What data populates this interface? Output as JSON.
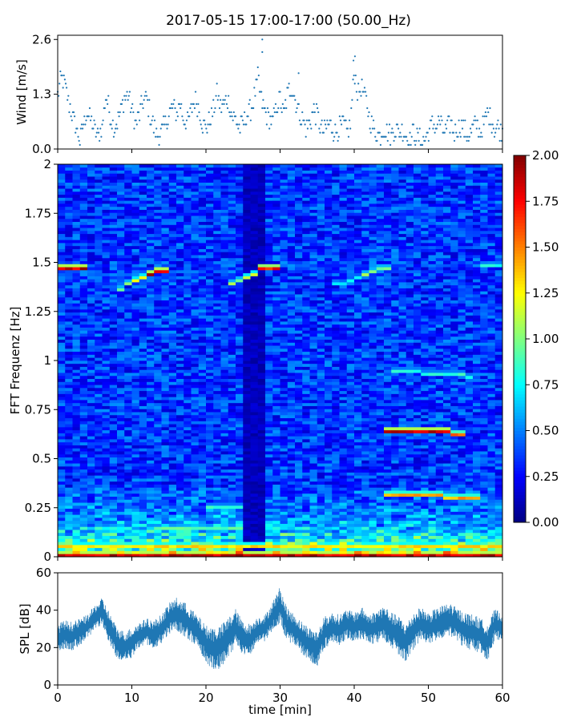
{
  "title": "2017-05-15 17:00-17:00 (50.00_Hz)",
  "chart_data": [
    {
      "type": "scatter",
      "panel": "wind",
      "ylabel": "Wind [m/s]",
      "xlim": [
        0,
        60
      ],
      "ylim": [
        0,
        2.7
      ],
      "yticks": [
        "0.0",
        "1.3",
        "2.6"
      ],
      "color": "#1f77b4",
      "x": [
        0,
        0.5,
        1,
        1.5,
        2,
        2.5,
        3,
        3.5,
        4,
        4.5,
        5,
        5.5,
        6,
        6.5,
        7,
        7.5,
        8,
        8.5,
        9,
        9.5,
        10,
        10.5,
        11,
        11.5,
        12,
        12.5,
        13,
        13.5,
        14,
        14.5,
        15,
        15.5,
        16,
        16.5,
        17,
        17.5,
        18,
        18.5,
        19,
        19.5,
        20,
        20.5,
        21,
        21.5,
        22,
        22.5,
        23,
        23.5,
        24,
        24.5,
        25,
        25.5,
        26,
        26.5,
        27,
        27.5,
        28,
        28.5,
        29,
        29.5,
        30,
        30.5,
        31,
        31.5,
        32,
        32.5,
        33,
        33.5,
        34,
        34.5,
        35,
        35.5,
        36,
        36.5,
        37,
        37.5,
        38,
        38.5,
        39,
        39.5,
        40,
        40.5,
        41,
        41.5,
        42,
        42.5,
        43,
        43.5,
        44,
        44.5,
        45,
        45.5,
        46,
        46.5,
        47,
        47.5,
        48,
        48.5,
        49,
        49.5,
        50,
        50.5,
        51,
        51.5,
        52,
        52.5,
        53,
        53.5,
        54,
        54.5,
        55,
        55.5,
        56,
        56.5,
        57,
        57.5,
        58,
        58.5,
        59,
        59.5,
        60
      ],
      "values": [
        1.3,
        1.7,
        1.5,
        1.1,
        0.8,
        0.5,
        0.2,
        0.6,
        0.9,
        0.7,
        0.4,
        0.3,
        0.5,
        1.3,
        0.9,
        0.5,
        0.6,
        0.9,
        1.2,
        1.3,
        0.9,
        0.6,
        0.8,
        1.1,
        1.2,
        0.8,
        0.5,
        0.3,
        0.4,
        0.6,
        0.8,
        1.0,
        0.8,
        1.1,
        0.7,
        0.6,
        0.9,
        1.2,
        1.0,
        0.6,
        0.5,
        0.7,
        0.9,
        1.3,
        1.0,
        1.1,
        1.2,
        0.8,
        0.7,
        0.5,
        0.6,
        0.8,
        0.9,
        1.2,
        1.7,
        1.1,
        0.9,
        0.7,
        0.6,
        1.0,
        1.2,
        0.8,
        1.3,
        1.5,
        1.2,
        0.9,
        0.7,
        0.5,
        0.6,
        0.9,
        0.8,
        0.5,
        0.4,
        0.6,
        0.5,
        0.4,
        0.5,
        0.6,
        0.4,
        0.6,
        1.9,
        1.3,
        1.5,
        1.2,
        0.8,
        0.5,
        0.4,
        0.3,
        0.5,
        0.4,
        0.3,
        0.5,
        0.4,
        0.5,
        0.3,
        0.2,
        0.4,
        0.3,
        0.2,
        0.2,
        0.4,
        0.6,
        0.5,
        0.7,
        0.4,
        0.5,
        0.6,
        0.4,
        0.5,
        0.6,
        0.4,
        0.3,
        0.5,
        0.6,
        0.4,
        0.6,
        0.9,
        0.7,
        0.5,
        0.5,
        0.4
      ]
    },
    {
      "type": "heatmap",
      "panel": "spectrogram",
      "ylabel": "FFT Frequenz [Hz]",
      "xlim": [
        0,
        60
      ],
      "ylim": [
        0,
        2
      ],
      "yticks": [
        "0",
        "0.25",
        "0.5",
        "0.75",
        "1",
        "1.25",
        "1.5",
        "1.75",
        "2"
      ],
      "colorscale": "jet",
      "colorbar": {
        "min": 0,
        "max": 2,
        "ticks": [
          "0.00",
          "0.25",
          "0.50",
          "0.75",
          "1.00",
          "1.25",
          "1.50",
          "1.75",
          "2.00"
        ]
      },
      "background_level": 0.35,
      "low_freq_level": 0.9,
      "features": [
        {
          "x": [
            0,
            3.5
          ],
          "y": [
            1.465,
            1.465
          ],
          "value": 2.0
        },
        {
          "x": [
            8,
            10
          ],
          "y": [
            1.35,
            1.4
          ],
          "value": 1.1
        },
        {
          "x": [
            10,
            12
          ],
          "y": [
            1.4,
            1.44
          ],
          "value": 1.3
        },
        {
          "x": [
            12,
            15
          ],
          "y": [
            1.44,
            1.46
          ],
          "value": 2.0
        },
        {
          "x": [
            23,
            25
          ],
          "y": [
            1.38,
            1.41
          ],
          "value": 1.1
        },
        {
          "x": [
            25,
            27
          ],
          "y": [
            1.41,
            1.45
          ],
          "value": 1.3
        },
        {
          "x": [
            27,
            30
          ],
          "y": [
            1.46,
            1.47
          ],
          "value": 1.9
        },
        {
          "x": [
            37,
            41
          ],
          "y": [
            1.38,
            1.43
          ],
          "value": 0.8
        },
        {
          "x": [
            41,
            45
          ],
          "y": [
            1.44,
            1.48
          ],
          "value": 1.1
        },
        {
          "x": [
            45,
            56
          ],
          "y": [
            0.95,
            0.92
          ],
          "value": 0.9
        },
        {
          "x": [
            44,
            53
          ],
          "y": [
            0.64,
            0.64
          ],
          "value": 2.0
        },
        {
          "x": [
            53,
            54.5
          ],
          "y": [
            0.63,
            0.63
          ],
          "value": 1.6
        },
        {
          "x": [
            44,
            57
          ],
          "y": [
            0.32,
            0.3
          ],
          "value": 1.5
        },
        {
          "x": [
            57,
            60
          ],
          "y": [
            1.49,
            1.49
          ],
          "value": 0.9
        },
        {
          "x": [
            0,
            60
          ],
          "y": [
            0.01,
            0.01
          ],
          "value": 2.0
        },
        {
          "x": [
            0,
            60
          ],
          "y": [
            0.06,
            0.06
          ],
          "value": 1.4
        },
        {
          "x": [
            13,
            25
          ],
          "y": [
            0.15,
            0.15
          ],
          "value": 1.0
        },
        {
          "x": [
            20,
            25
          ],
          "y": [
            0.25,
            0.25
          ],
          "value": 0.9
        }
      ],
      "dark_band": {
        "x": [
          25,
          27.5
        ],
        "level": 0.12
      }
    },
    {
      "type": "area",
      "panel": "spl",
      "ylabel": "SPL [dB]",
      "xlabel": "time [min]",
      "xlim": [
        0,
        60
      ],
      "ylim": [
        0,
        60
      ],
      "xticks": [
        "0",
        "10",
        "20",
        "30",
        "40",
        "50",
        "60"
      ],
      "yticks": [
        "0",
        "20",
        "40",
        "60"
      ],
      "color": "#1f77b4",
      "x": [
        0,
        1,
        2,
        3,
        4,
        5,
        6,
        7,
        8,
        9,
        10,
        11,
        12,
        13,
        14,
        15,
        16,
        17,
        18,
        19,
        20,
        21,
        22,
        23,
        24,
        25,
        26,
        27,
        28,
        29,
        30,
        31,
        32,
        33,
        34,
        35,
        36,
        37,
        38,
        39,
        40,
        41,
        42,
        43,
        44,
        45,
        46,
        47,
        48,
        49,
        50,
        51,
        52,
        53,
        54,
        55,
        56,
        57,
        58,
        59,
        60
      ],
      "upper": [
        32,
        34,
        33,
        35,
        37,
        42,
        46,
        38,
        30,
        28,
        30,
        33,
        35,
        34,
        37,
        43,
        46,
        44,
        40,
        36,
        31,
        30,
        31,
        35,
        40,
        33,
        32,
        36,
        37,
        44,
        52,
        40,
        37,
        33,
        30,
        28,
        36,
        38,
        37,
        40,
        38,
        41,
        37,
        39,
        42,
        38,
        36,
        32,
        38,
        41,
        38,
        40,
        42,
        43,
        40,
        38,
        37,
        35,
        32,
        40,
        38
      ],
      "lower": [
        18,
        20,
        19,
        22,
        25,
        30,
        33,
        22,
        15,
        13,
        15,
        20,
        22,
        20,
        23,
        28,
        30,
        27,
        24,
        20,
        13,
        8,
        10,
        15,
        22,
        16,
        17,
        23,
        24,
        30,
        33,
        24,
        22,
        17,
        13,
        10,
        20,
        23,
        22,
        25,
        24,
        25,
        22,
        23,
        25,
        21,
        17,
        13,
        20,
        25,
        22,
        24,
        26,
        27,
        24,
        20,
        19,
        18,
        14,
        25,
        24
      ]
    }
  ]
}
